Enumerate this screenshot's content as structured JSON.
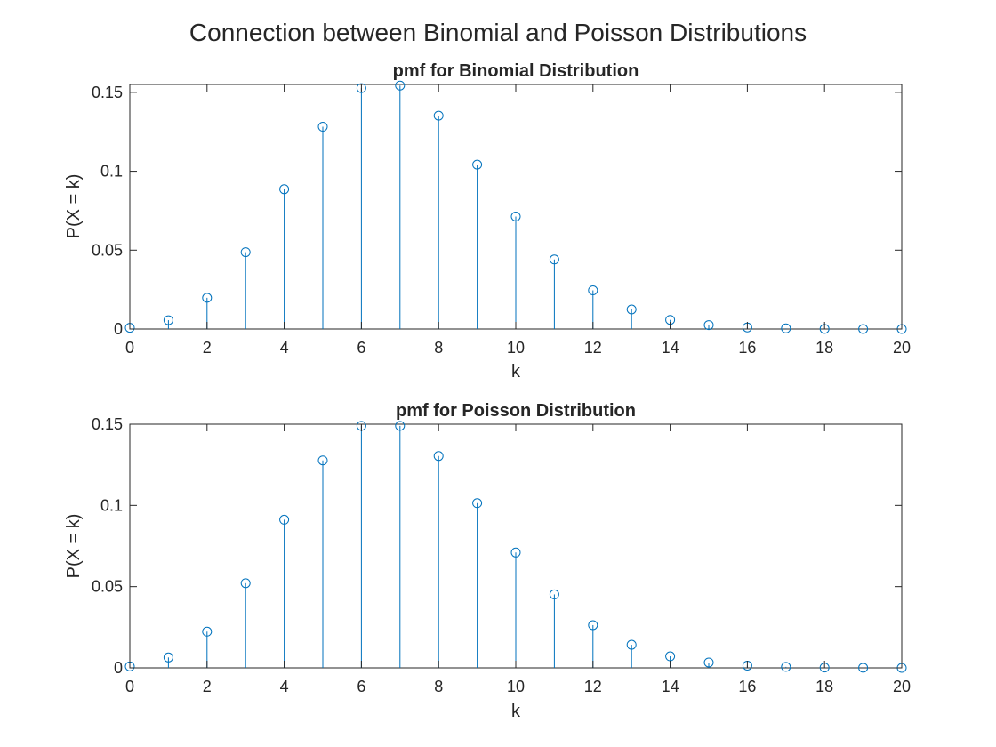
{
  "figure_title": "Connection between Binomial and Poisson Distributions",
  "style": {
    "marker_color": "#0072BD",
    "axis_color": "#262626",
    "background": "#ffffff"
  },
  "chart_data": [
    {
      "type": "stem",
      "title": "pmf for Binomial Distribution",
      "xlabel": "k",
      "ylabel": "P(X = k)",
      "xlim": [
        0,
        20
      ],
      "ylim": [
        0,
        0.155
      ],
      "xticks": [
        0,
        2,
        4,
        6,
        8,
        10,
        12,
        14,
        16,
        18,
        20
      ],
      "xtick_labels": [
        "0",
        "2",
        "4",
        "6",
        "8",
        "10",
        "12",
        "14",
        "16",
        "18",
        "20"
      ],
      "yticks": [
        0,
        0.05,
        0.1,
        0.15
      ],
      "ytick_labels": [
        "0",
        "0.05",
        "0.1",
        "0.15"
      ],
      "grid": false,
      "x": [
        0,
        1,
        2,
        3,
        4,
        5,
        6,
        7,
        8,
        9,
        10,
        11,
        12,
        13,
        14,
        15,
        16,
        17,
        18,
        19,
        20
      ],
      "y": [
        0.0008,
        0.0056,
        0.0198,
        0.0487,
        0.0886,
        0.1282,
        0.1527,
        0.1543,
        0.1352,
        0.1042,
        0.0713,
        0.0441,
        0.0245,
        0.0124,
        0.0058,
        0.0025,
        0.001,
        0.0004,
        0.0001,
        0.0,
        0.0
      ]
    },
    {
      "type": "stem",
      "title": "pmf for Poisson Distribution",
      "xlabel": "k",
      "ylabel": "P(X = k)",
      "xlim": [
        0,
        20
      ],
      "ylim": [
        0,
        0.15
      ],
      "xticks": [
        0,
        2,
        4,
        6,
        8,
        10,
        12,
        14,
        16,
        18,
        20
      ],
      "xtick_labels": [
        "0",
        "2",
        "4",
        "6",
        "8",
        "10",
        "12",
        "14",
        "16",
        "18",
        "20"
      ],
      "yticks": [
        0,
        0.05,
        0.1,
        0.15
      ],
      "ytick_labels": [
        "0",
        "0.05",
        "0.1",
        "0.15"
      ],
      "grid": false,
      "x": [
        0,
        1,
        2,
        3,
        4,
        5,
        6,
        7,
        8,
        9,
        10,
        11,
        12,
        13,
        14,
        15,
        16,
        17,
        18,
        19,
        20
      ],
      "y": [
        0.0009,
        0.0064,
        0.0223,
        0.0521,
        0.0912,
        0.1277,
        0.149,
        0.149,
        0.1304,
        0.1014,
        0.071,
        0.0452,
        0.0263,
        0.0142,
        0.0071,
        0.0033,
        0.0014,
        0.0006,
        0.0002,
        0.0001,
        0.0
      ]
    }
  ]
}
